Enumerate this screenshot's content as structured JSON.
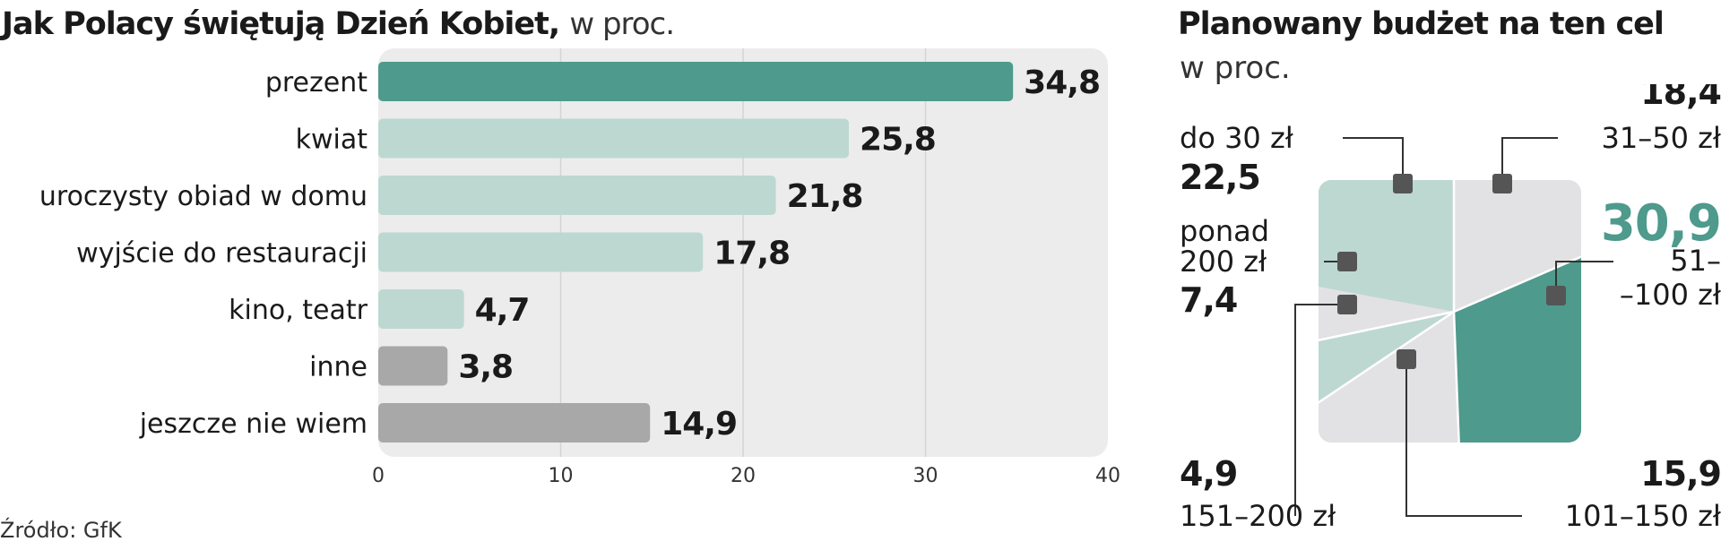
{
  "bar_chart": {
    "title_bold": "Jak Polacy świętują Dzień Kobiet,",
    "title_unit": "w proc.",
    "source": "Źródło: GfK"
  },
  "budget_chart": {
    "title": "Planowany budżet na ten cel",
    "subtitle": "w proc."
  },
  "colors": {
    "dark_green": "#4e9a8c",
    "light_green": "#bdd8d1",
    "gray_bar": "#a8a8a8",
    "panel_bg": "#ececec",
    "light_gray": "#e2e2e4",
    "marker": "#555555"
  },
  "chart_data": [
    {
      "type": "bar",
      "orientation": "horizontal",
      "title": "Jak Polacy świętują Dzień Kobiet, w proc.",
      "categories": [
        "prezent",
        "kwiat",
        "uroczysty obiad w domu",
        "wyjście do restauracji",
        "kino, teatr",
        "inne",
        "jeszcze nie wiem"
      ],
      "values": [
        34.8,
        25.8,
        21.8,
        17.8,
        4.7,
        3.8,
        14.9
      ],
      "value_labels": [
        "34,8",
        "25,8",
        "21,8",
        "17,8",
        "4,7",
        "3,8",
        "14,9"
      ],
      "bar_colors": [
        "#4e9a8c",
        "#bdd8d1",
        "#bdd8d1",
        "#bdd8d1",
        "#bdd8d1",
        "#a8a8a8",
        "#a8a8a8"
      ],
      "xlim": [
        0,
        40
      ],
      "xticks": [
        0,
        10,
        20,
        30,
        40
      ],
      "xtick_labels": [
        "0",
        "10",
        "20",
        "30",
        "40"
      ],
      "grid": true,
      "source": "Źródło: GfK"
    },
    {
      "type": "pie",
      "title": "Planowany budżet na ten cel",
      "subtitle": "w proc.",
      "segments": [
        {
          "name": "do 30 zł",
          "value": 22.5,
          "label": "22,5",
          "color": "#bdd8d1"
        },
        {
          "name": "31–50 zł",
          "value": 18.4,
          "label": "18,4",
          "color": "#e2e2e4"
        },
        {
          "name": "51–\n–100 zł",
          "value": 30.9,
          "label": "30,9",
          "color": "#4e9a8c"
        },
        {
          "name": "101–150 zł",
          "value": 15.9,
          "label": "15,9",
          "color": "#e2e2e4"
        },
        {
          "name": "151–200 zł",
          "value": 4.9,
          "label": "4,9",
          "color": "#bdd8d1"
        },
        {
          "name": "ponad\n200 zł",
          "value": 7.4,
          "label": "7,4",
          "color": "#e2e2e4"
        }
      ]
    }
  ]
}
